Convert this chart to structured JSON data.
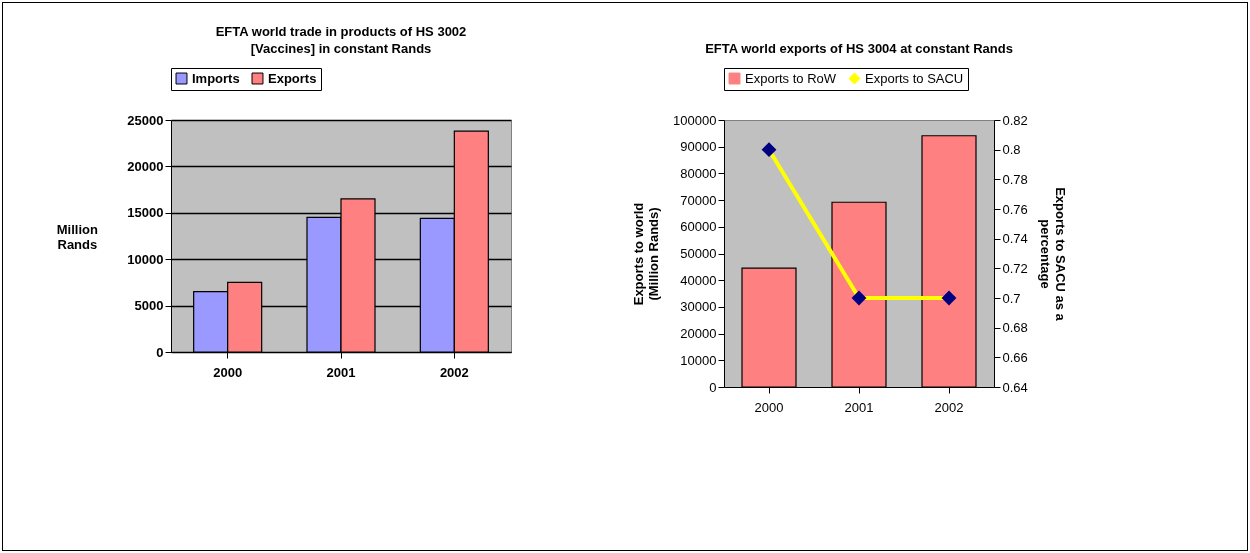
{
  "chart_data": [
    {
      "type": "bar",
      "title": "EFTA world trade in products of HS 3002 [Vaccines] in constant Rands",
      "ylabel": "Million Rands",
      "categories": [
        "2000",
        "2001",
        "2002"
      ],
      "series": [
        {
          "name": "Imports",
          "color": "#9999ff",
          "values": [
            6500,
            14500,
            14400
          ]
        },
        {
          "name": "Exports",
          "color": "#ff8080",
          "values": [
            7500,
            16500,
            23800
          ]
        }
      ],
      "ylim": [
        0,
        25000
      ],
      "yticks": [
        0,
        5000,
        10000,
        15000,
        20000,
        25000
      ],
      "grid": "y",
      "legend": "top"
    },
    {
      "type": "bar",
      "title": "EFTA world exports of HS 3004 at constant Rands",
      "ylabel": "Exports to world (Million Rands)",
      "y2label": "Exports to SACU as a percentage",
      "categories": [
        "2000",
        "2001",
        "2002"
      ],
      "series": [
        {
          "name": "Exports to RoW",
          "color": "#ff8080",
          "values": [
            44500,
            69200,
            94100
          ]
        },
        {
          "name": "Exports to SACU",
          "type": "line",
          "axis": "y2",
          "color": "#ffff00",
          "marker": "diamond",
          "values": [
            0.8,
            0.7,
            0.7
          ]
        }
      ],
      "ylim": [
        0,
        100000
      ],
      "yticks": [
        0,
        10000,
        20000,
        30000,
        40000,
        50000,
        60000,
        70000,
        80000,
        90000,
        100000
      ],
      "y2lim": [
        0.64,
        0.82
      ],
      "y2ticks": [
        0.64,
        0.66,
        0.68,
        0.7,
        0.72,
        0.74,
        0.76,
        0.78,
        0.8,
        0.82
      ],
      "legend": "top"
    }
  ]
}
